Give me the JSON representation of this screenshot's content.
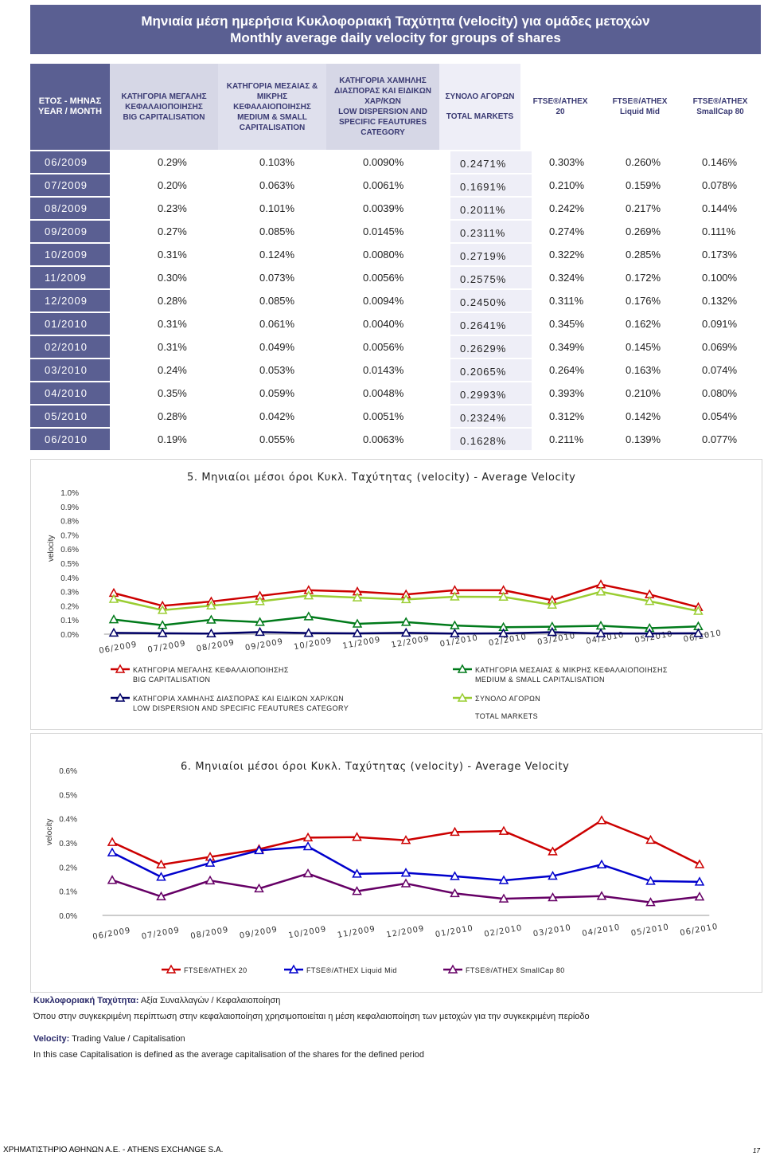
{
  "title": {
    "line1": "Μηνιαία μέση ημερήσια Κυκλοφοριακή Ταχύτητα (velocity) για ομάδες μετοχών",
    "line2": "Monthly average daily velocity for groups of shares"
  },
  "headers": {
    "year": {
      "gr": "ΕΤΟΣ - ΜΗΝΑΣ",
      "en": "YEAR / MONTH"
    },
    "big": {
      "gr": "ΚΑΤΗΓΟΡΙΑ ΜΕΓΑΛΗΣ ΚΕΦΑΛΑΙΟΠΟΙΗΣΗΣ",
      "en": "BIG CAPITALISATION"
    },
    "medium": {
      "gr": "ΚΑΤΗΓΟΡΙΑ ΜΕΣΑΙΑΣ & ΜΙΚΡΗΣ ΚΕΦΑΛΑΙΟΠΟΙΗΣΗΣ",
      "en": "MEDIUM & SMALL CAPITALISATION"
    },
    "low": {
      "gr": "ΚΑΤΗΓΟΡΙΑ ΧΑΜΗΛΗΣ ΔΙΑΣΠΟΡΑΣ ΚΑΙ ΕΙΔΙΚΩΝ ΧΑΡ/ΚΩΝ",
      "en": "LOW DISPERSION AND SPECIFIC FEAUTURES CATEGORY"
    },
    "total": {
      "gr": "ΣΥΝΟΛΟ ΑΓΟΡΩΝ",
      "en": "TOTAL MARKETS"
    },
    "ftse20": "FTSE®/ATHEX 20",
    "ftseMid": "FTSE®/ATHEX Liquid Mid",
    "ftseSmall": "FTSE®/ATHEX SmallCap 80"
  },
  "table_rows": [
    {
      "month": "06/2009",
      "big": "0.29%",
      "medium": "0.103%",
      "low": "0.0090%",
      "total": "0.2471%",
      "ftse20": "0.303%",
      "mid": "0.260%",
      "small": "0.146%"
    },
    {
      "month": "07/2009",
      "big": "0.20%",
      "medium": "0.063%",
      "low": "0.0061%",
      "total": "0.1691%",
      "ftse20": "0.210%",
      "mid": "0.159%",
      "small": "0.078%"
    },
    {
      "month": "08/2009",
      "big": "0.23%",
      "medium": "0.101%",
      "low": "0.0039%",
      "total": "0.2011%",
      "ftse20": "0.242%",
      "mid": "0.217%",
      "small": "0.144%"
    },
    {
      "month": "09/2009",
      "big": "0.27%",
      "medium": "0.085%",
      "low": "0.0145%",
      "total": "0.2311%",
      "ftse20": "0.274%",
      "mid": "0.269%",
      "small": "0.111%"
    },
    {
      "month": "10/2009",
      "big": "0.31%",
      "medium": "0.124%",
      "low": "0.0080%",
      "total": "0.2719%",
      "ftse20": "0.322%",
      "mid": "0.285%",
      "small": "0.173%"
    },
    {
      "month": "11/2009",
      "big": "0.30%",
      "medium": "0.073%",
      "low": "0.0056%",
      "total": "0.2575%",
      "ftse20": "0.324%",
      "mid": "0.172%",
      "small": "0.100%"
    },
    {
      "month": "12/2009",
      "big": "0.28%",
      "medium": "0.085%",
      "low": "0.0094%",
      "total": "0.2450%",
      "ftse20": "0.311%",
      "mid": "0.176%",
      "small": "0.132%"
    },
    {
      "month": "01/2010",
      "big": "0.31%",
      "medium": "0.061%",
      "low": "0.0040%",
      "total": "0.2641%",
      "ftse20": "0.345%",
      "mid": "0.162%",
      "small": "0.091%"
    },
    {
      "month": "02/2010",
      "big": "0.31%",
      "medium": "0.049%",
      "low": "0.0056%",
      "total": "0.2629%",
      "ftse20": "0.349%",
      "mid": "0.145%",
      "small": "0.069%"
    },
    {
      "month": "03/2010",
      "big": "0.24%",
      "medium": "0.053%",
      "low": "0.0143%",
      "total": "0.2065%",
      "ftse20": "0.264%",
      "mid": "0.163%",
      "small": "0.074%"
    },
    {
      "month": "04/2010",
      "big": "0.35%",
      "medium": "0.059%",
      "low": "0.0048%",
      "total": "0.2993%",
      "ftse20": "0.393%",
      "mid": "0.210%",
      "small": "0.080%"
    },
    {
      "month": "05/2010",
      "big": "0.28%",
      "medium": "0.042%",
      "low": "0.0051%",
      "total": "0.2324%",
      "ftse20": "0.312%",
      "mid": "0.142%",
      "small": "0.054%"
    },
    {
      "month": "06/2010",
      "big": "0.19%",
      "medium": "0.055%",
      "low": "0.0063%",
      "total": "0.1628%",
      "ftse20": "0.211%",
      "mid": "0.139%",
      "small": "0.077%"
    }
  ],
  "chart_data": [
    {
      "type": "line",
      "title": "5. Μηνιαίοι μέσοι όροι Κυκλ. Ταχύτητας (velocity) - Average Velocity",
      "xlabel": "",
      "ylabel": "velocity",
      "ylim": [
        0,
        1.0
      ],
      "yticks": [
        "0.0%",
        "0.1%",
        "0.2%",
        "0.3%",
        "0.4%",
        "0.5%",
        "0.6%",
        "0.7%",
        "0.8%",
        "0.9%",
        "1.0%"
      ],
      "categories": [
        "06/2009",
        "07/2009",
        "08/2009",
        "09/2009",
        "10/2009",
        "11/2009",
        "12/2009",
        "01/2010",
        "02/2010",
        "03/2010",
        "04/2010",
        "05/2010",
        "06/2010"
      ],
      "series": [
        {
          "name": "ΚΑΤΗΓΟΡΙΑ ΜΕΓΑΛΗΣ ΚΕΦΑΛΑΙΟΠΟΙΗΣΗΣ",
          "name2": "BIG CAPITALISATION",
          "color": "#cc0000",
          "values": [
            0.29,
            0.2,
            0.23,
            0.27,
            0.31,
            0.3,
            0.28,
            0.31,
            0.31,
            0.24,
            0.35,
            0.28,
            0.19
          ]
        },
        {
          "name": "ΚΑΤΗΓΟΡΙΑ ΜΕΣΑΙΑΣ & ΜΙΚΡΗΣ ΚΕΦΑΛΑΙΟΠΟΙΗΣΗΣ",
          "name2": "MEDIUM & SMALL CAPITALISATION",
          "color": "#007a1a",
          "values": [
            0.103,
            0.063,
            0.101,
            0.085,
            0.124,
            0.073,
            0.085,
            0.061,
            0.049,
            0.053,
            0.059,
            0.042,
            0.055
          ]
        },
        {
          "name": "ΚΑΤΗΓΟΡΙΑ ΧΑΜΗΛΗΣ ΔΙΑΣΠΟΡΑΣ ΚΑΙ ΕΙΔΙΚΩΝ ΧΑΡ/ΚΩΝ",
          "name2": "LOW DISPERSION AND SPECIFIC FEAUTURES CATEGORY",
          "color": "#000066",
          "values": [
            0.009,
            0.0061,
            0.0039,
            0.0145,
            0.008,
            0.0056,
            0.0094,
            0.004,
            0.0056,
            0.0143,
            0.0048,
            0.0051,
            0.0063
          ]
        },
        {
          "name": "ΣΥΝΟΛΟ ΑΓΟΡΩΝ",
          "name2": "TOTAL MARKETS",
          "color": "#9acd32",
          "values": [
            0.2471,
            0.1691,
            0.2011,
            0.2311,
            0.2719,
            0.2575,
            0.245,
            0.2641,
            0.2629,
            0.2065,
            0.2993,
            0.2324,
            0.1628
          ]
        }
      ]
    },
    {
      "type": "line",
      "title": "6. Μηνιαίοι μέσοι όροι Κυκλ. Ταχύτητας (velocity) - Average Velocity",
      "xlabel": "",
      "ylabel": "velocity",
      "ylim": [
        0,
        0.6
      ],
      "yticks": [
        "0.0%",
        "0.1%",
        "0.2%",
        "0.3%",
        "0.4%",
        "0.5%",
        "0.6%"
      ],
      "categories": [
        "06/2009",
        "07/2009",
        "08/2009",
        "09/2009",
        "10/2009",
        "11/2009",
        "12/2009",
        "01/2010",
        "02/2010",
        "03/2010",
        "04/2010",
        "05/2010",
        "06/2010"
      ],
      "series": [
        {
          "name": "FTSE®/ATHEX 20",
          "color": "#cc0000",
          "values": [
            0.303,
            0.21,
            0.242,
            0.274,
            0.322,
            0.324,
            0.311,
            0.345,
            0.349,
            0.264,
            0.393,
            0.312,
            0.211
          ]
        },
        {
          "name": "FTSE®/ATHEX Liquid Mid",
          "color": "#0000cc",
          "values": [
            0.26,
            0.159,
            0.217,
            0.269,
            0.285,
            0.172,
            0.176,
            0.162,
            0.145,
            0.163,
            0.21,
            0.142,
            0.139
          ]
        },
        {
          "name": "FTSE®/ATHEX SmallCap 80",
          "color": "#660066",
          "values": [
            0.146,
            0.078,
            0.144,
            0.111,
            0.173,
            0.1,
            0.132,
            0.091,
            0.069,
            0.074,
            0.08,
            0.054,
            0.077
          ]
        }
      ]
    }
  ],
  "notes": {
    "line1_label": "Κυκλοφοριακή Ταχύτητα:",
    "line1_text": " Αξία Συναλλαγών / Κεφαλαιοποίηση",
    "line2": "Όπου στην συγκεκριμένη περίπτωση στην κεφαλαιοποίηση χρησιμοποιείται η μέση κεφαλαιοποίηση των μετοχών για την συγκεκριμένη περίοδο",
    "line3_label": "Velocity:",
    "line3_text": " Trading Value / Capitalisation",
    "line4": "In this case Capitalisation is defined as the average capitalisation of the shares for the defined period"
  },
  "footer": {
    "left": "ΧΡΗΜΑΤΙΣΤΗΡΙΟ ΑΘΗΝΩΝ Α.Ε. - ATHENS EXCHANGE S.A.",
    "page": "17"
  }
}
